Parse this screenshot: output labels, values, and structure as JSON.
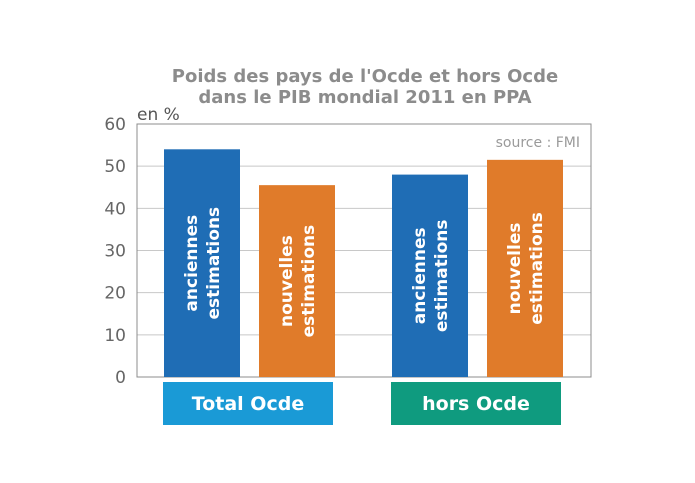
{
  "chart_data": {
    "type": "bar",
    "title": [
      "Poids des pays de l'Ocde et hors Ocde",
      "dans  le PIB mondial 2011 en PPA"
    ],
    "unit_label": "en %",
    "source": "source : FMI",
    "ylim": [
      0,
      60
    ],
    "yticks": [
      0,
      10,
      20,
      30,
      40,
      50,
      60
    ],
    "grid": true,
    "categories": [
      "Total Ocde",
      "hors Ocde"
    ],
    "category_colors": [
      "#1a9ad6",
      "#0f9b7f"
    ],
    "series": [
      {
        "name": [
          "anciennes",
          "estimations"
        ],
        "color": "#1f6db5",
        "values": [
          54,
          48
        ]
      },
      {
        "name": [
          "nouvelles",
          "estimations"
        ],
        "color": "#e07b2a",
        "values": [
          45.5,
          51.5
        ]
      }
    ]
  }
}
